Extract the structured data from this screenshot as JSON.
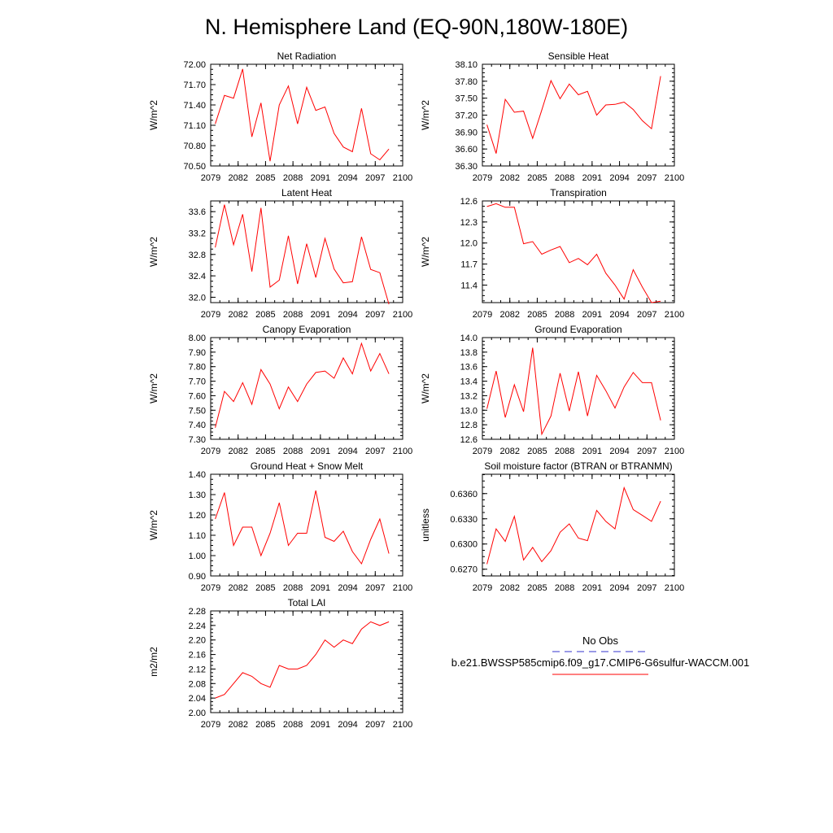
{
  "page_title": "N. Hemisphere Land (EQ-90N,180W-180E)",
  "colors": {
    "series": "#ff0000",
    "obs": "#3333cc",
    "axis": "#000000"
  },
  "legend": {
    "obs_label": "No Obs",
    "model_label": "b.e21.BWSSP585cmip6.f09_g17.CMIP6-G6sulfur-WACCM.001"
  },
  "chart_data": [
    {
      "type": "line",
      "title": "Net Radiation",
      "ylabel": "W/m^2",
      "xlabel": "",
      "xlim": [
        2079,
        2100
      ],
      "ylim": [
        70.5,
        72.0
      ],
      "xticks": [
        "2079",
        "2082",
        "2085",
        "2088",
        "2091",
        "2094",
        "2097",
        "2100"
      ],
      "yticks": [
        "70.50",
        "70.80",
        "71.10",
        "71.40",
        "71.70",
        "72.00"
      ],
      "x": [
        2079.5,
        2080.5,
        2081.5,
        2082.5,
        2083.5,
        2084.5,
        2085.5,
        2086.5,
        2087.5,
        2088.5,
        2089.5,
        2090.5,
        2091.5,
        2092.5,
        2093.5,
        2094.5,
        2095.5,
        2096.5,
        2097.5,
        2098.5
      ],
      "values": [
        71.12,
        71.54,
        71.5,
        71.93,
        70.93,
        71.43,
        70.57,
        71.4,
        71.68,
        71.12,
        71.66,
        71.32,
        71.37,
        70.98,
        70.78,
        70.71,
        71.35,
        70.68,
        70.59,
        70.75
      ]
    },
    {
      "type": "line",
      "title": "Sensible Heat",
      "ylabel": "W/m^2",
      "xlabel": "",
      "xlim": [
        2079,
        2100
      ],
      "ylim": [
        36.3,
        38.1
      ],
      "xticks": [
        "2079",
        "2082",
        "2085",
        "2088",
        "2091",
        "2094",
        "2097",
        "2100"
      ],
      "yticks": [
        "36.30",
        "36.60",
        "36.90",
        "37.20",
        "37.50",
        "37.80",
        "38.10"
      ],
      "x": [
        2079.5,
        2080.5,
        2081.5,
        2082.5,
        2083.5,
        2084.5,
        2085.5,
        2086.5,
        2087.5,
        2088.5,
        2089.5,
        2090.5,
        2091.5,
        2092.5,
        2093.5,
        2094.5,
        2095.5,
        2096.5,
        2097.5,
        2098.5
      ],
      "values": [
        37.03,
        36.52,
        37.48,
        37.25,
        37.27,
        36.79,
        37.29,
        37.81,
        37.49,
        37.75,
        37.56,
        37.62,
        37.2,
        37.38,
        37.39,
        37.43,
        37.3,
        37.1,
        36.96,
        37.89
      ]
    },
    {
      "type": "line",
      "title": "Latent Heat",
      "ylabel": "W/m^2",
      "xlabel": "",
      "xlim": [
        2079,
        2100
      ],
      "ylim": [
        31.9,
        33.8
      ],
      "xticks": [
        "2079",
        "2082",
        "2085",
        "2088",
        "2091",
        "2094",
        "2097",
        "2100"
      ],
      "yticks": [
        "32.0",
        "32.4",
        "32.8",
        "33.2",
        "33.6"
      ],
      "x": [
        2079.5,
        2080.5,
        2081.5,
        2082.5,
        2083.5,
        2084.5,
        2085.5,
        2086.5,
        2087.5,
        2088.5,
        2089.5,
        2090.5,
        2091.5,
        2092.5,
        2093.5,
        2094.5,
        2095.5,
        2096.5,
        2097.5,
        2098.5
      ],
      "values": [
        32.93,
        33.73,
        32.98,
        33.55,
        32.48,
        33.67,
        32.19,
        32.32,
        33.15,
        32.25,
        33.0,
        32.37,
        33.1,
        32.53,
        32.27,
        32.29,
        33.13,
        32.52,
        32.46,
        31.87
      ]
    },
    {
      "type": "line",
      "title": "Transpiration",
      "ylabel": "W/m^2",
      "xlabel": "",
      "xlim": [
        2079,
        2100
      ],
      "ylim": [
        11.15,
        12.6
      ],
      "xticks": [
        "2079",
        "2082",
        "2085",
        "2088",
        "2091",
        "2094",
        "2097",
        "2100"
      ],
      "yticks": [
        "11.4",
        "11.7",
        "12.0",
        "12.3",
        "12.6"
      ],
      "x": [
        2079.5,
        2080.5,
        2081.5,
        2082.5,
        2083.5,
        2084.5,
        2085.5,
        2086.5,
        2087.5,
        2088.5,
        2089.5,
        2090.5,
        2091.5,
        2092.5,
        2093.5,
        2094.5,
        2095.5,
        2096.5,
        2097.5,
        2098.5
      ],
      "values": [
        12.52,
        12.56,
        12.51,
        12.51,
        11.99,
        12.02,
        11.84,
        11.9,
        11.95,
        11.72,
        11.78,
        11.69,
        11.84,
        11.57,
        11.4,
        11.2,
        11.62,
        11.37,
        11.15,
        11.17
      ]
    },
    {
      "type": "line",
      "title": "Canopy Evaporation",
      "ylabel": "W/m^2",
      "xlabel": "",
      "xlim": [
        2079,
        2100
      ],
      "ylim": [
        7.3,
        8.0
      ],
      "xticks": [
        "2079",
        "2082",
        "2085",
        "2088",
        "2091",
        "2094",
        "2097",
        "2100"
      ],
      "yticks": [
        "7.30",
        "7.40",
        "7.50",
        "7.60",
        "7.70",
        "7.80",
        "7.90",
        "8.00"
      ],
      "x": [
        2079.5,
        2080.5,
        2081.5,
        2082.5,
        2083.5,
        2084.5,
        2085.5,
        2086.5,
        2087.5,
        2088.5,
        2089.5,
        2090.5,
        2091.5,
        2092.5,
        2093.5,
        2094.5,
        2095.5,
        2096.5,
        2097.5,
        2098.5
      ],
      "values": [
        7.38,
        7.63,
        7.56,
        7.69,
        7.54,
        7.78,
        7.68,
        7.51,
        7.66,
        7.56,
        7.68,
        7.76,
        7.77,
        7.72,
        7.86,
        7.75,
        7.96,
        7.77,
        7.89,
        7.75
      ]
    },
    {
      "type": "line",
      "title": "Ground Evaporation",
      "ylabel": "W/m^2",
      "xlabel": "",
      "xlim": [
        2079,
        2100
      ],
      "ylim": [
        12.6,
        14.0
      ],
      "xticks": [
        "2079",
        "2082",
        "2085",
        "2088",
        "2091",
        "2094",
        "2097",
        "2100"
      ],
      "yticks": [
        "12.6",
        "12.8",
        "13.0",
        "13.2",
        "13.4",
        "13.6",
        "13.8",
        "14.0"
      ],
      "x": [
        2079.5,
        2080.5,
        2081.5,
        2082.5,
        2083.5,
        2084.5,
        2085.5,
        2086.5,
        2087.5,
        2088.5,
        2089.5,
        2090.5,
        2091.5,
        2092.5,
        2093.5,
        2094.5,
        2095.5,
        2096.5,
        2097.5,
        2098.5
      ],
      "values": [
        13.02,
        13.54,
        12.9,
        13.35,
        12.98,
        13.86,
        12.67,
        12.92,
        13.51,
        12.99,
        13.53,
        12.92,
        13.48,
        13.27,
        13.03,
        13.32,
        13.52,
        13.38,
        13.38,
        12.86
      ]
    },
    {
      "type": "line",
      "title": "Ground Heat + Snow Melt",
      "ylabel": "W/m^2",
      "xlabel": "",
      "xlim": [
        2079,
        2100
      ],
      "ylim": [
        0.9,
        1.4
      ],
      "xticks": [
        "2079",
        "2082",
        "2085",
        "2088",
        "2091",
        "2094",
        "2097",
        "2100"
      ],
      "yticks": [
        "0.90",
        "1.00",
        "1.10",
        "1.20",
        "1.30",
        "1.40"
      ],
      "x": [
        2079.5,
        2080.5,
        2081.5,
        2082.5,
        2083.5,
        2084.5,
        2085.5,
        2086.5,
        2087.5,
        2088.5,
        2089.5,
        2090.5,
        2091.5,
        2092.5,
        2093.5,
        2094.5,
        2095.5,
        2096.5,
        2097.5,
        2098.5
      ],
      "values": [
        1.18,
        1.31,
        1.05,
        1.14,
        1.14,
        1.0,
        1.11,
        1.26,
        1.05,
        1.11,
        1.11,
        1.32,
        1.09,
        1.07,
        1.12,
        1.02,
        0.96,
        1.08,
        1.18,
        1.01
      ]
    },
    {
      "type": "line",
      "title": "Soil moisture factor (BTRAN or BTRANMN)",
      "ylabel": "unitless",
      "xlabel": "",
      "xlim": [
        2079,
        2100
      ],
      "ylim": [
        0.6262,
        0.6383
      ],
      "xticks": [
        "2079",
        "2082",
        "2085",
        "2088",
        "2091",
        "2094",
        "2097",
        "2100"
      ],
      "yticks": [
        "0.6270",
        "0.6300",
        "0.6330",
        "0.6360"
      ],
      "x": [
        2079.5,
        2080.5,
        2081.5,
        2082.5,
        2083.5,
        2084.5,
        2085.5,
        2086.5,
        2087.5,
        2088.5,
        2089.5,
        2090.5,
        2091.5,
        2092.5,
        2093.5,
        2094.5,
        2095.5,
        2096.5,
        2097.5,
        2098.5
      ],
      "values": [
        0.6276,
        0.6318,
        0.6303,
        0.6333,
        0.6281,
        0.6296,
        0.6279,
        0.6292,
        0.6314,
        0.6324,
        0.6307,
        0.6304,
        0.634,
        0.6327,
        0.6318,
        0.6367,
        0.6341,
        0.6334,
        0.6327,
        0.6351
      ]
    },
    {
      "type": "line",
      "title": "Total LAI",
      "ylabel": "m2/m2",
      "xlabel": "",
      "xlim": [
        2079,
        2100
      ],
      "ylim": [
        2.0,
        2.28
      ],
      "xticks": [
        "2079",
        "2082",
        "2085",
        "2088",
        "2091",
        "2094",
        "2097",
        "2100"
      ],
      "yticks": [
        "2.00",
        "2.04",
        "2.08",
        "2.12",
        "2.16",
        "2.20",
        "2.24",
        "2.28"
      ],
      "x": [
        2079.5,
        2080.5,
        2081.5,
        2082.5,
        2083.5,
        2084.5,
        2085.5,
        2086.5,
        2087.5,
        2088.5,
        2089.5,
        2090.5,
        2091.5,
        2092.5,
        2093.5,
        2094.5,
        2095.5,
        2096.5,
        2097.5,
        2098.5
      ],
      "values": [
        2.04,
        2.05,
        2.08,
        2.11,
        2.1,
        2.08,
        2.07,
        2.13,
        2.12,
        2.12,
        2.13,
        2.16,
        2.2,
        2.18,
        2.2,
        2.19,
        2.23,
        2.25,
        2.24,
        2.25
      ]
    }
  ]
}
